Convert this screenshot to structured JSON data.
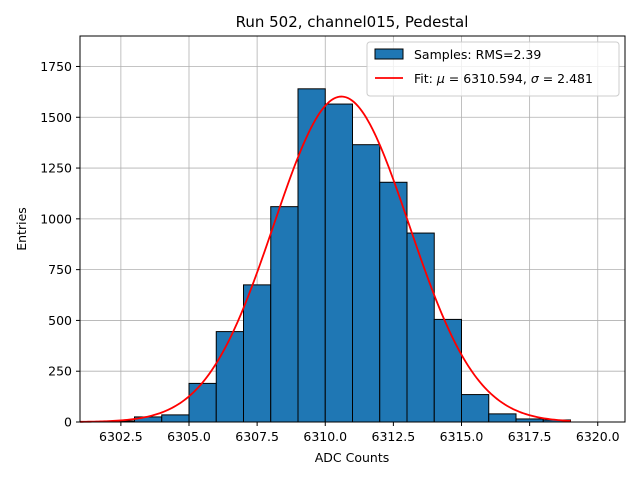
{
  "chart_data": {
    "type": "bar",
    "title": "Run 502, channel015, Pedestal",
    "xlabel": "ADC Counts",
    "ylabel": "Entries",
    "xlim": [
      6301.0,
      6321.0
    ],
    "ylim": [
      0,
      1900
    ],
    "x_ticks": [
      6302.5,
      6305.0,
      6307.5,
      6310.0,
      6312.5,
      6315.0,
      6317.5,
      6320.0
    ],
    "x_tick_labels": [
      "6302.5",
      "6305.0",
      "6307.5",
      "6310.0",
      "6312.5",
      "6315.0",
      "6317.5",
      "6320.0"
    ],
    "y_ticks": [
      0,
      250,
      500,
      750,
      1000,
      1250,
      1500,
      1750
    ],
    "y_tick_labels": [
      "0",
      "250",
      "500",
      "750",
      "1000",
      "1250",
      "1500",
      "1750"
    ],
    "grid": true,
    "legend_position": "top-right",
    "bar_color": "#1f77b4",
    "fit_color": "#ff0000",
    "bins": {
      "edges": [
        6302,
        6303,
        6304,
        6305,
        6306,
        6307,
        6308,
        6309,
        6310,
        6311,
        6312,
        6313,
        6314,
        6315,
        6316,
        6317,
        6318,
        6319
      ],
      "counts": [
        5,
        25,
        35,
        190,
        445,
        675,
        1060,
        1640,
        1565,
        1365,
        1180,
        930,
        505,
        135,
        40,
        15,
        10
      ]
    },
    "fit": {
      "mu": 6310.594,
      "sigma": 2.481,
      "amplitude": 1602,
      "x_range": [
        6301.0,
        6319.0
      ]
    },
    "legend": [
      {
        "kind": "patch",
        "label": "Samples: RMS=2.39"
      },
      {
        "kind": "line",
        "label_prefix": "Fit: ",
        "label_mu_sym": "μ",
        "label_mu_eq": " = 6310.594, ",
        "label_sigma_sym": "σ",
        "label_sigma_eq": " = 2.481"
      }
    ]
  }
}
